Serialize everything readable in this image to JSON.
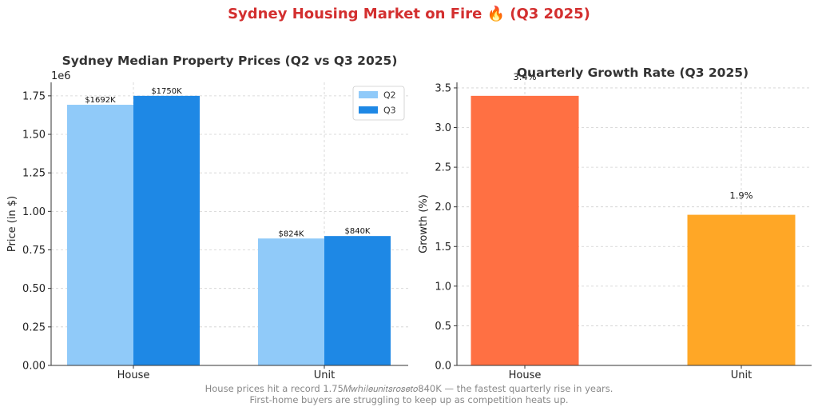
{
  "suptitle": "Sydney Housing Market on Fire 🔥 (Q3 2025)",
  "caption_lines": [
    "House prices hit a record 1.75𝑀𝑤ℎ𝑖𝑙𝑒𝑢𝑛𝑖𝑡𝑠𝑟𝑜𝑠𝑒𝑡𝑜840K — the fastest quarterly rise in years.",
    "First-home buyers are struggling to keep up as competition heats up."
  ],
  "colors": {
    "q2": "#90caf9",
    "q3": "#1e88e5",
    "house_growth": "#ff7043",
    "unit_growth": "#ffa726",
    "suptitle": "#d32f2f"
  },
  "chart_data": [
    {
      "type": "bar",
      "title": "Sydney Median Property Prices (Q2 vs Q3 2025)",
      "categories": [
        "House",
        "Unit"
      ],
      "series": [
        {
          "name": "Q2",
          "values": [
            1692000,
            824000
          ],
          "labels": [
            "$1692K",
            "$824K"
          ]
        },
        {
          "name": "Q3",
          "values": [
            1750000,
            840000
          ],
          "labels": [
            "$1750K",
            "$840K"
          ]
        }
      ],
      "ylabel": "Price (in $)",
      "yticks": [
        "0.00",
        "0.25",
        "0.50",
        "0.75",
        "1.00",
        "1.25",
        "1.50",
        "1.75"
      ],
      "y_offset_label": "1e6",
      "ylim": [
        0,
        1837500
      ],
      "grid": true,
      "legend": "top-right"
    },
    {
      "type": "bar",
      "title": "Quarterly Growth Rate (Q3 2025)",
      "categories": [
        "House",
        "Unit"
      ],
      "values": [
        3.4,
        1.9
      ],
      "labels": [
        "3.4%",
        "1.9%"
      ],
      "ylabel": "Growth (%)",
      "yticks": [
        "0.0",
        "0.5",
        "1.0",
        "1.5",
        "2.0",
        "2.5",
        "3.0",
        "3.5"
      ],
      "ylim": [
        0,
        3.57
      ],
      "grid": true
    }
  ]
}
